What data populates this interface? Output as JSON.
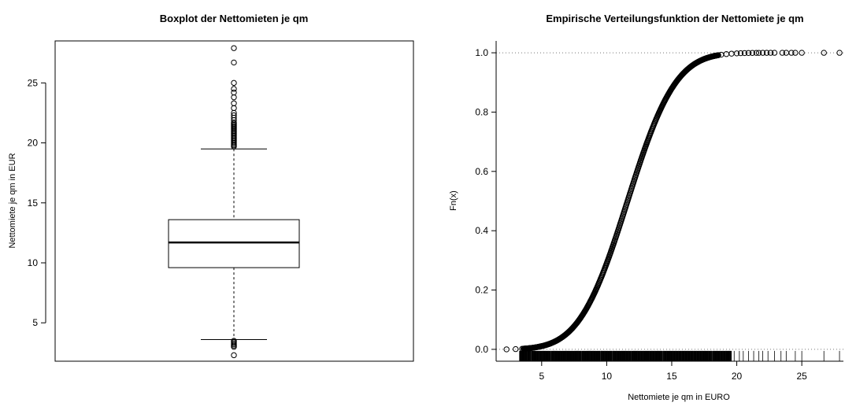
{
  "chart_data": [
    {
      "type": "boxplot",
      "title": "Boxplot der Nettomieten je qm",
      "xlabel": "",
      "ylabel": "Nettomiete je qm in EUR",
      "ylim": [
        1.8,
        28.5
      ],
      "yticks": [
        5,
        10,
        15,
        20,
        25
      ],
      "box": {
        "lower_whisker": 3.6,
        "q1": 9.6,
        "median": 11.7,
        "q3": 13.6,
        "upper_whisker": 19.5
      },
      "outliers_high": [
        19.7,
        19.8,
        19.9,
        20.0,
        20.1,
        20.2,
        20.3,
        20.4,
        20.5,
        20.6,
        20.7,
        20.8,
        20.9,
        21.0,
        21.1,
        21.2,
        21.3,
        21.4,
        21.5,
        21.6,
        21.7,
        21.9,
        22.1,
        22.3,
        22.5,
        22.9,
        23.3,
        23.8,
        24.2,
        24.5,
        25.0,
        26.7,
        27.9
      ],
      "outliers_low": [
        2.3,
        3.0,
        3.1,
        3.2,
        3.3,
        3.4,
        3.5
      ]
    },
    {
      "type": "ecdf",
      "title": "Empirische Verteilungsfunktion der  Nettomiete je qm",
      "xlabel": "Nettomiete je qm in EURO",
      "ylabel": "Fn(x)",
      "xlim": [
        1.5,
        28.2
      ],
      "ylim": [
        -0.04,
        1.04
      ],
      "xticks": [
        5,
        10,
        15,
        20,
        25
      ],
      "yticks": [
        0.0,
        0.2,
        0.4,
        0.6,
        0.8,
        1.0
      ],
      "yticklabels": [
        "0.0",
        "0.2",
        "0.4",
        "0.6",
        "0.8",
        "1.0"
      ],
      "distribution": {
        "mean": 11.6,
        "sd": 2.9
      },
      "min": 2.3,
      "max": 27.9,
      "sparse_points": [
        2.3,
        3.0,
        3.5,
        18.8,
        19.2,
        19.6,
        20.0,
        20.3,
        20.6,
        20.9,
        21.2,
        21.5,
        21.7,
        22.0,
        22.3,
        22.6,
        22.9,
        23.5,
        23.8,
        24.2,
        24.5,
        25.0,
        26.7,
        27.9
      ],
      "rug_range": [
        3.3,
        19.6
      ],
      "rug_sparse": [
        19.8,
        20.2,
        20.5,
        20.9,
        21.3,
        21.7,
        22.0,
        22.4,
        22.9,
        23.4,
        23.8,
        24.5,
        25.0,
        26.7,
        27.9
      ]
    }
  ]
}
